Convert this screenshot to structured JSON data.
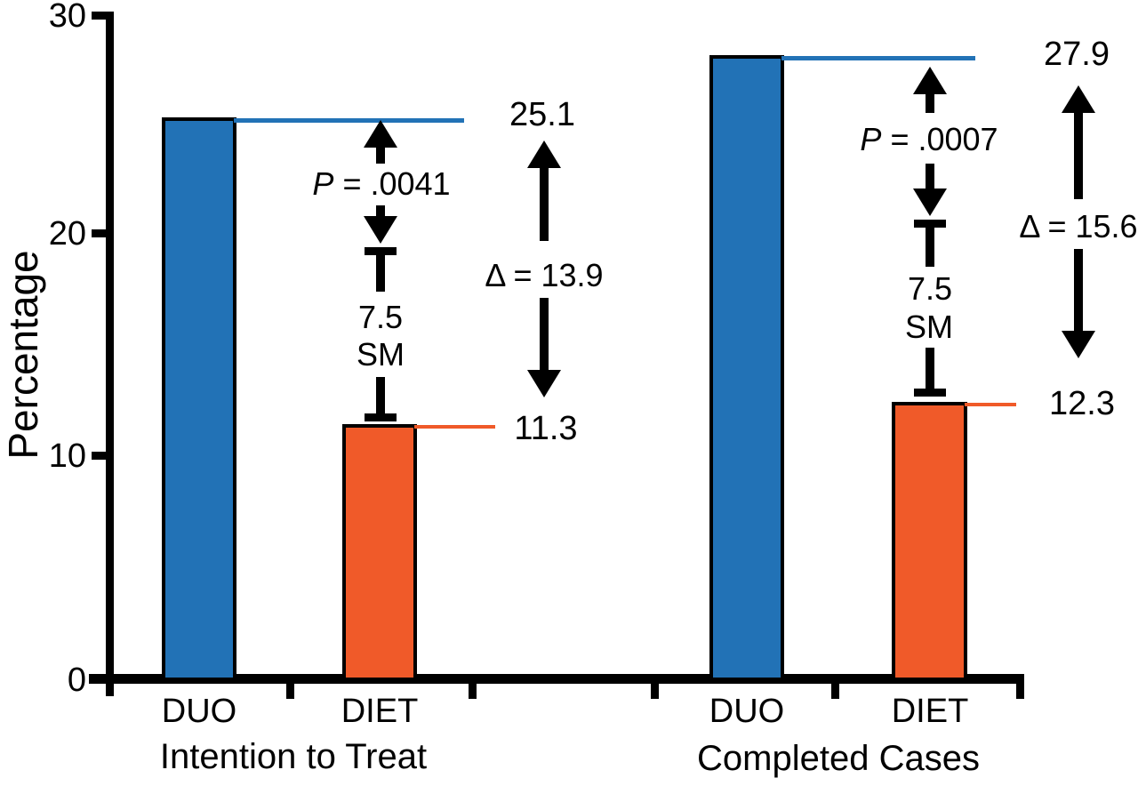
{
  "chart_data": {
    "type": "bar",
    "title": "",
    "xlabel": "",
    "ylabel": "Percentage",
    "ylim": [
      0,
      30
    ],
    "yticks": [
      0,
      10,
      20,
      30
    ],
    "ytick_labels": [
      "0",
      "10",
      "20",
      "30"
    ],
    "grid": false,
    "legend": "none",
    "categories": [
      "DUO",
      "DIET"
    ],
    "colors": {
      "duo": "#2272b6",
      "diet": "#f05a29",
      "annotation": "#000000",
      "duo_refline": "#2272b6",
      "diet_refline": "#f05a29"
    },
    "groups": [
      {
        "label": "Intention to Treat",
        "duo": 25.1,
        "diet": 11.3,
        "duo_value_label": "25.1",
        "diet_value_label": "11.3",
        "p_letter": "P",
        "p_rest": " = .0041",
        "delta_label": "Δ = 13.9",
        "sm_value": "7.5",
        "sm_unit": "SM"
      },
      {
        "label": "Completed Cases",
        "duo": 27.9,
        "diet": 12.3,
        "duo_value_label": "27.9",
        "diet_value_label": "12.3",
        "p_letter": "P",
        "p_rest": " = .0007",
        "delta_label": "Δ = 15.6",
        "sm_value": "7.5",
        "sm_unit": "SM"
      }
    ]
  }
}
